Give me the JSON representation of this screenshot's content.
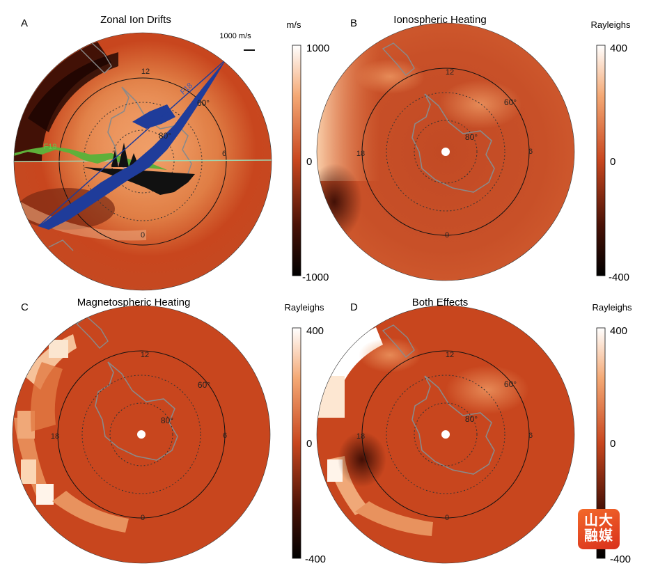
{
  "panels": [
    {
      "letter": "A",
      "title": "Zonal Ion Drifts",
      "unit": "m/s",
      "colorbar": {
        "max": "1000",
        "mid": "0",
        "min": "-1000"
      },
      "scale_label": "1000 m/s",
      "satellites": [
        "F19",
        "F18"
      ],
      "mlt_labels": [
        "12",
        "18",
        "6",
        "0"
      ],
      "lat_labels": [
        "60°",
        "80°"
      ]
    },
    {
      "letter": "B",
      "title": "Ionospheric Heating",
      "unit": "Rayleighs",
      "colorbar": {
        "max": "400",
        "mid": "0",
        "min": "-400"
      },
      "mlt_labels": [
        "12",
        "18",
        "6",
        "0"
      ],
      "lat_labels": [
        "60°",
        "80°"
      ]
    },
    {
      "letter": "C",
      "title": "Magnetospheric Heating",
      "unit": "Rayleighs",
      "colorbar": {
        "max": "400",
        "mid": "0",
        "min": "-400"
      },
      "mlt_labels": [
        "12",
        "18",
        "6",
        "0"
      ],
      "lat_labels": [
        "60°",
        "80°"
      ]
    },
    {
      "letter": "D",
      "title": "Both Effects",
      "unit": "Rayleighs",
      "colorbar": {
        "max": "400",
        "mid": "0",
        "min": "-400"
      },
      "mlt_labels": [
        "12",
        "18",
        "6",
        "0"
      ],
      "lat_labels": [
        "60°",
        "80°"
      ]
    }
  ],
  "watermark": {
    "line1": "山大",
    "line2": "融媒"
  },
  "colors": {
    "map_base": "#c8461e",
    "map_hot": "#f3a56e",
    "map_dark": "#3a0c04",
    "coastline": "#8a8a8a",
    "drift_blue": "#1f3c9a",
    "drift_green": "#5fb03a"
  }
}
